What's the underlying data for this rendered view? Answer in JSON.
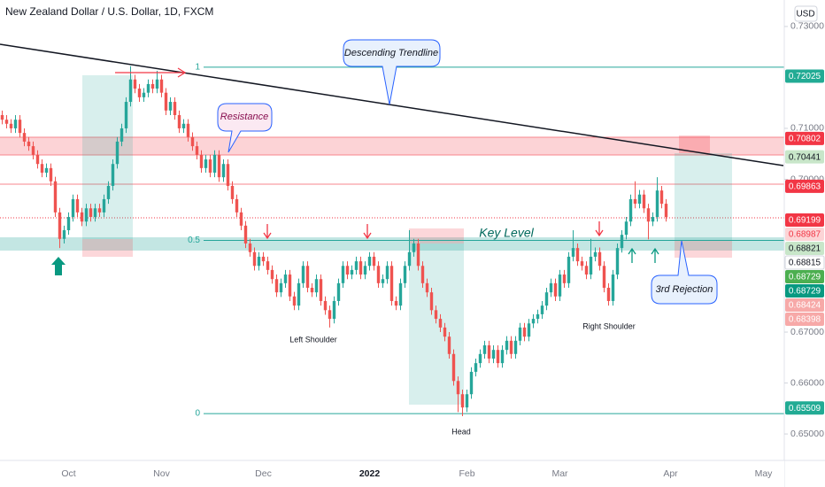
{
  "chart_data": {
    "type": "candlestick",
    "title": "New Zealand Dollar / U.S. Dollar, 1D, FXCM",
    "currency": "USD",
    "up_color": "#26a69a",
    "down_color": "#ef5350",
    "ylim": [
      0.6448,
      0.7352
    ],
    "yticks": [
      {
        "value": 0.73,
        "label": "0.73000"
      },
      {
        "value": 0.71,
        "label": "0.71000"
      },
      {
        "value": 0.7,
        "label": "0.70000"
      },
      {
        "value": 0.67,
        "label": "0.67000"
      },
      {
        "value": 0.66,
        "label": "0.66000"
      },
      {
        "value": 0.65,
        "label": "0.65000"
      }
    ],
    "categories": [
      null,
      null,
      null,
      null,
      null,
      null,
      null,
      null,
      null,
      null,
      null,
      null,
      null,
      null,
      null,
      "Oct",
      null,
      null,
      null,
      null,
      null,
      null,
      null,
      null,
      null,
      null,
      null,
      null,
      null,
      null,
      null,
      null,
      null,
      null,
      null,
      null,
      "Nov",
      null,
      null,
      null,
      null,
      null,
      null,
      null,
      null,
      null,
      null,
      null,
      null,
      null,
      null,
      null,
      null,
      null,
      null,
      null,
      null,
      null,
      null,
      "Dec",
      null,
      null,
      null,
      null,
      null,
      null,
      null,
      null,
      null,
      null,
      null,
      null,
      null,
      null,
      null,
      null,
      null,
      null,
      null,
      null,
      null,
      null,
      null,
      "2022",
      null,
      null,
      null,
      null,
      null,
      null,
      null,
      null,
      null,
      null,
      null,
      null,
      null,
      null,
      null,
      null,
      null,
      null,
      null,
      null,
      null,
      "Feb",
      null,
      null,
      null,
      null,
      null,
      null,
      null,
      null,
      null,
      null,
      null,
      null,
      null,
      null,
      null,
      null,
      null,
      null,
      null,
      null,
      "Mar",
      null,
      null,
      null,
      null,
      null,
      null,
      null,
      null,
      null,
      null,
      null,
      null,
      null,
      null,
      null,
      null,
      null,
      null,
      null,
      null,
      null,
      null,
      null,
      null,
      "Apr",
      null,
      null,
      null,
      null,
      null,
      null,
      null,
      null,
      null,
      null,
      null,
      null,
      null,
      null,
      null,
      null,
      null,
      null,
      null,
      null,
      "May",
      null,
      null,
      null,
      null
    ],
    "open": [
      0.7126,
      0.7117,
      0.7109,
      0.71,
      0.7117,
      0.7091,
      0.7074,
      0.7065,
      0.7048,
      0.703,
      0.7013,
      0.7022,
      0.6996,
      0.6935,
      0.6883,
      0.69,
      0.6926,
      0.6961,
      0.6935,
      0.6917,
      0.6943,
      0.6926,
      0.6943,
      0.6935,
      0.6961,
      0.6987,
      0.703,
      0.7074,
      0.71,
      0.7152,
      0.7196,
      0.7178,
      0.7161,
      0.717,
      0.7187,
      0.7178,
      0.7196,
      0.717,
      0.7135,
      0.7152,
      0.7126,
      0.71,
      0.7109,
      0.7083,
      0.7065,
      0.7048,
      0.7022,
      0.7039,
      0.7013,
      0.7048,
      0.7004,
      0.703,
      0.6987,
      0.6961,
      0.6935,
      0.6909,
      0.6874,
      0.6857,
      0.683,
      0.6848,
      0.6839,
      0.6822,
      0.6804,
      0.6778,
      0.6796,
      0.6813,
      0.677,
      0.6752,
      0.6796,
      0.683,
      0.6787,
      0.6778,
      0.6804,
      0.6761,
      0.6743,
      0.6726,
      0.6761,
      0.6796,
      0.683,
      0.6813,
      0.6822,
      0.6839,
      0.6813,
      0.683,
      0.6848,
      0.683,
      0.6796,
      0.6804,
      0.683,
      0.6761,
      0.6752,
      0.6796,
      0.683,
      0.6857,
      0.6874,
      0.683,
      0.6796,
      0.6778,
      0.6743,
      0.6726,
      0.6709,
      0.6691,
      0.6657,
      0.6604,
      0.6578,
      0.6552,
      0.6578,
      0.6622,
      0.6639,
      0.6657,
      0.6674,
      0.6648,
      0.6665,
      0.6639,
      0.6665,
      0.6683,
      0.6657,
      0.6683,
      0.6709,
      0.6691,
      0.6717,
      0.6726,
      0.6735,
      0.6752,
      0.6778,
      0.6796,
      0.677,
      0.6813,
      0.6796,
      0.6848,
      0.6865,
      0.6839,
      0.683,
      0.6813,
      0.6848,
      0.6857,
      0.683,
      0.6787,
      0.6761,
      0.6813,
      0.6865,
      0.6891,
      0.6917,
      0.6961,
      0.6952,
      0.697,
      0.6943,
      0.6917,
      0.6926,
      0.6978,
      0.6952,
      null,
      null,
      null,
      null,
      null,
      null,
      null,
      null,
      null,
      null,
      null,
      null,
      null,
      null,
      null,
      null,
      null,
      null,
      null,
      null,
      null,
      null,
      null,
      null,
      null,
      null
    ],
    "high": [
      0.7135,
      0.7126,
      0.7118,
      0.7126,
      0.7126,
      0.71,
      0.7083,
      0.7074,
      0.7057,
      0.7039,
      0.7031,
      0.7031,
      0.7005,
      0.6944,
      0.6909,
      0.6935,
      0.697,
      0.697,
      0.6944,
      0.6952,
      0.6952,
      0.6952,
      0.6952,
      0.697,
      0.6996,
      0.7039,
      0.7083,
      0.7109,
      0.7161,
      0.7222,
      0.7205,
      0.7187,
      0.7179,
      0.7196,
      0.7196,
      0.7213,
      0.7205,
      0.7179,
      0.7161,
      0.7161,
      0.7135,
      0.7118,
      0.7118,
      0.7092,
      0.7074,
      0.7057,
      0.7048,
      0.7048,
      0.7057,
      0.7057,
      0.7039,
      0.7039,
      0.6996,
      0.697,
      0.6944,
      0.6918,
      0.6883,
      0.6866,
      0.6857,
      0.6857,
      0.6848,
      0.6831,
      0.6813,
      0.6805,
      0.6822,
      0.6822,
      0.6779,
      0.6805,
      0.6839,
      0.6839,
      0.6796,
      0.6813,
      0.6813,
      0.677,
      0.6752,
      0.677,
      0.6805,
      0.6839,
      0.6839,
      0.6831,
      0.6848,
      0.6848,
      0.6839,
      0.6857,
      0.6857,
      0.6839,
      0.6813,
      0.6839,
      0.6839,
      0.677,
      0.6805,
      0.6839,
      0.69,
      0.6883,
      0.6883,
      0.6839,
      0.6805,
      0.6787,
      0.6752,
      0.6735,
      0.6718,
      0.67,
      0.6666,
      0.6613,
      0.6587,
      0.6587,
      0.6631,
      0.6648,
      0.6666,
      0.6683,
      0.6683,
      0.6674,
      0.6674,
      0.6674,
      0.6692,
      0.6692,
      0.6692,
      0.6718,
      0.6718,
      0.6726,
      0.6735,
      0.6744,
      0.6761,
      0.6787,
      0.6805,
      0.6805,
      0.6822,
      0.6822,
      0.6857,
      0.69,
      0.6874,
      0.6848,
      0.6839,
      0.6883,
      0.6866,
      0.6866,
      0.6839,
      0.6796,
      0.6822,
      0.6874,
      0.69,
      0.6926,
      0.697,
      0.6996,
      0.6979,
      0.6979,
      0.6952,
      0.6935,
      0.7004,
      0.6987,
      0.6961,
      null,
      null,
      null,
      null,
      null,
      null,
      null,
      null,
      null,
      null,
      null,
      null,
      null,
      null,
      null,
      null,
      null,
      null,
      null,
      null,
      null,
      null,
      null,
      null,
      null,
      null
    ],
    "low": [
      0.7108,
      0.71,
      0.7091,
      0.7091,
      0.7082,
      0.7065,
      0.7056,
      0.7039,
      0.7021,
      0.7004,
      0.7004,
      0.6987,
      0.6926,
      0.6865,
      0.6874,
      0.6891,
      0.6917,
      0.6926,
      0.6908,
      0.6908,
      0.6917,
      0.6917,
      0.6926,
      0.6926,
      0.6952,
      0.6978,
      0.7021,
      0.7065,
      0.7091,
      0.7143,
      0.7169,
      0.7152,
      0.7152,
      0.7161,
      0.7169,
      0.7169,
      0.7161,
      0.7126,
      0.7126,
      0.7117,
      0.7091,
      0.7091,
      0.7074,
      0.7056,
      0.7039,
      0.7013,
      0.7013,
      0.7004,
      0.7004,
      0.6995,
      0.6995,
      0.6978,
      0.6952,
      0.6926,
      0.69,
      0.6865,
      0.6848,
      0.6821,
      0.6821,
      0.683,
      0.6813,
      0.6795,
      0.6769,
      0.6769,
      0.6787,
      0.6761,
      0.6743,
      0.6743,
      0.6787,
      0.6778,
      0.6769,
      0.6769,
      0.6752,
      0.6734,
      0.6709,
      0.6717,
      0.6752,
      0.6787,
      0.6804,
      0.6804,
      0.6813,
      0.6804,
      0.6804,
      0.6821,
      0.6821,
      0.6787,
      0.6787,
      0.6795,
      0.6752,
      0.6743,
      0.6743,
      0.6787,
      0.6821,
      0.6848,
      0.6821,
      0.6787,
      0.6769,
      0.6734,
      0.6717,
      0.67,
      0.6682,
      0.6648,
      0.6595,
      0.6543,
      0.6535,
      0.6543,
      0.6569,
      0.6613,
      0.663,
      0.6648,
      0.6639,
      0.6639,
      0.663,
      0.663,
      0.6656,
      0.6648,
      0.6648,
      0.6674,
      0.6682,
      0.6682,
      0.6708,
      0.6717,
      0.6726,
      0.6743,
      0.6769,
      0.6761,
      0.6761,
      0.6787,
      0.6787,
      0.6839,
      0.683,
      0.6821,
      0.6804,
      0.6804,
      0.6839,
      0.6821,
      0.6778,
      0.6752,
      0.6752,
      0.6804,
      0.6856,
      0.6882,
      0.6908,
      0.6943,
      0.6943,
      0.6934,
      0.6882,
      0.6908,
      0.6917,
      0.6943,
      0.6917,
      null,
      null,
      null,
      null,
      null,
      null,
      null,
      null,
      null,
      null,
      null,
      null,
      null,
      null,
      null,
      null,
      null,
      null,
      null,
      null,
      null,
      null,
      null,
      null,
      null,
      null
    ],
    "close": [
      0.7117,
      0.7109,
      0.71,
      0.7117,
      0.7091,
      0.7074,
      0.7065,
      0.7048,
      0.703,
      0.7013,
      0.7022,
      0.6996,
      0.6935,
      0.6883,
      0.69,
      0.6926,
      0.6961,
      0.6935,
      0.6917,
      0.6943,
      0.6926,
      0.6943,
      0.6935,
      0.6961,
      0.6987,
      0.703,
      0.7074,
      0.71,
      0.7152,
      0.7196,
      0.7178,
      0.7161,
      0.717,
      0.7187,
      0.7178,
      0.7196,
      0.717,
      0.7135,
      0.7152,
      0.7126,
      0.71,
      0.7109,
      0.7083,
      0.7065,
      0.7048,
      0.7022,
      0.7039,
      0.7013,
      0.7048,
      0.7004,
      0.703,
      0.6987,
      0.6961,
      0.6935,
      0.6909,
      0.6874,
      0.6857,
      0.683,
      0.6848,
      0.6839,
      0.6822,
      0.6804,
      0.6778,
      0.6796,
      0.6813,
      0.677,
      0.6752,
      0.6796,
      0.683,
      0.6787,
      0.6778,
      0.6804,
      0.6761,
      0.6743,
      0.6726,
      0.6761,
      0.6796,
      0.683,
      0.6813,
      0.6822,
      0.6839,
      0.6813,
      0.683,
      0.6848,
      0.683,
      0.6796,
      0.6804,
      0.683,
      0.6761,
      0.6752,
      0.6796,
      0.683,
      0.6857,
      0.6874,
      0.683,
      0.6796,
      0.6778,
      0.6743,
      0.6726,
      0.6709,
      0.6691,
      0.6657,
      0.6604,
      0.6578,
      0.6552,
      0.6578,
      0.6622,
      0.6639,
      0.6657,
      0.6674,
      0.6648,
      0.6665,
      0.6639,
      0.6665,
      0.6683,
      0.6657,
      0.6683,
      0.6709,
      0.6691,
      0.6717,
      0.6726,
      0.6735,
      0.6752,
      0.6778,
      0.6796,
      0.677,
      0.6813,
      0.6796,
      0.6848,
      0.6865,
      0.6839,
      0.683,
      0.6813,
      0.6848,
      0.6857,
      0.683,
      0.6787,
      0.6761,
      0.6813,
      0.6865,
      0.6891,
      0.6917,
      0.6961,
      0.6952,
      0.697,
      0.6943,
      0.6917,
      0.6926,
      0.6978,
      0.6952,
      0.6926,
      null,
      null,
      null,
      null,
      null,
      null,
      null,
      null,
      null,
      null,
      null,
      null,
      null,
      null,
      null,
      null,
      null,
      null,
      null,
      null,
      null,
      null,
      null,
      null,
      null,
      null
    ],
    "fib": {
      "high": 0.722,
      "low": 0.654,
      "ratios": [
        1,
        0.5,
        0
      ],
      "color": "#26a69a"
    },
    "price_labels": [
      {
        "value": 0.72025,
        "bg": "#22ab94",
        "fg": "#ffffff"
      },
      {
        "value": 0.70802,
        "bg": "#f23645",
        "fg": "#ffffff"
      },
      {
        "value": 0.70441,
        "bg": "#c8e6c9",
        "fg": "#131722"
      },
      {
        "value": 0.69863,
        "bg": "#f23645",
        "fg": "#ffffff"
      },
      {
        "value": 0.69199,
        "bg": "#f23645",
        "fg": "#ffffff"
      },
      {
        "value": 0.68987,
        "bg": "#fcd4d6",
        "fg": "#f23645"
      },
      {
        "value": 0.68821,
        "bg": "#c8e6c9",
        "fg": "#131722"
      },
      {
        "value": 0.68815,
        "bg": "#ffffff",
        "fg": "#131722"
      },
      {
        "value": 0.68729,
        "bg": "#4caf50",
        "fg": "#ffffff"
      },
      {
        "value": 0.68729,
        "bg": "#089981",
        "fg": "#ffffff"
      },
      {
        "value": 0.68424,
        "bg": "#f7a9a8",
        "fg": "#ffffff"
      },
      {
        "value": 0.68398,
        "bg": "#f7a9a8",
        "fg": "#ffffff"
      },
      {
        "value": 0.65509,
        "bg": "#22ab94",
        "fg": "#ffffff"
      }
    ],
    "annotations": {
      "trendline": "Descending Trendline",
      "resistance": "Resistance",
      "key_level": "Key Level",
      "rejection": "3rd Rejection",
      "left_shoulder": "Left Shoulder",
      "head": "Head",
      "right_shoulder": "Right Shoulder"
    }
  }
}
